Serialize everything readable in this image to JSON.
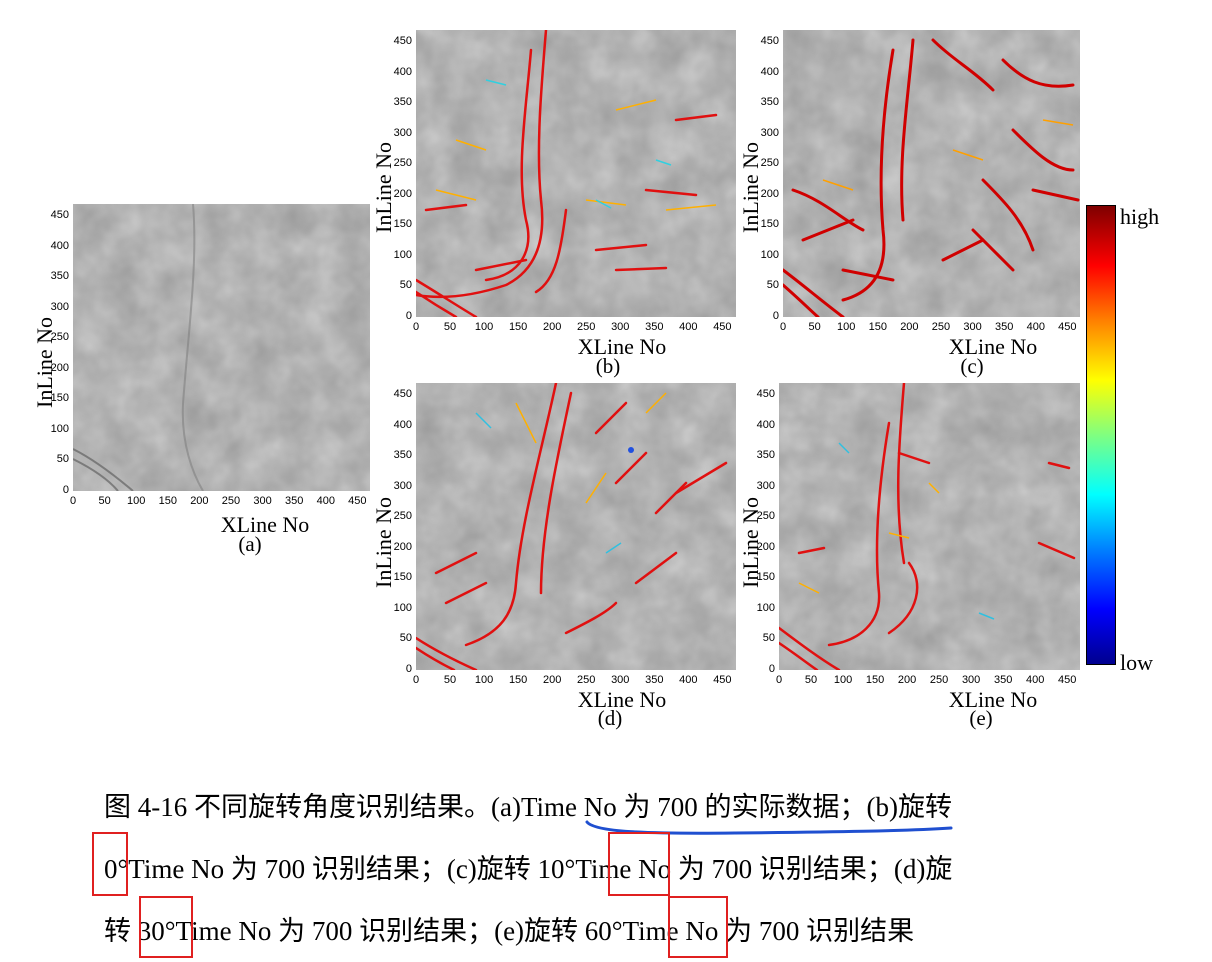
{
  "figure": {
    "axis_ticks_y": [
      "0",
      "50",
      "100",
      "150",
      "200",
      "250",
      "300",
      "350",
      "400",
      "450"
    ],
    "axis_ticks_x": [
      "0",
      "50",
      "100",
      "150",
      "200",
      "250",
      "300",
      "350",
      "400",
      "450"
    ],
    "xlabel": "XLine No",
    "ylabel": "InLine No",
    "panels": [
      {
        "id": "a",
        "label": "(a)"
      },
      {
        "id": "b",
        "label": "(b)"
      },
      {
        "id": "c",
        "label": "(c)"
      },
      {
        "id": "d",
        "label": "(d)"
      },
      {
        "id": "e",
        "label": "(e)"
      }
    ],
    "colorbar": {
      "top_label": "high",
      "bottom_label": "low",
      "colors": [
        "#7f0000",
        "#ff0000",
        "#ff8000",
        "#ffff00",
        "#80ff80",
        "#00ffff",
        "#0080ff",
        "#0000ff",
        "#00008f"
      ]
    }
  },
  "caption": {
    "line1": "图 4-16 不同旋转角度识别结果。(a)Time No 为 700 的实际数据；(b)旋转",
    "line2": "0°Time No 为 700 识别结果；(c)旋转 10°Time No 为 700 识别结果；(d)旋",
    "line3": "转 30°Time No 为 700 识别结果；(e)旋转 60°Time No 为 700 识别结果"
  },
  "annotations": {
    "underline_color": "#1f4fd0",
    "box_color": "#e02020"
  }
}
